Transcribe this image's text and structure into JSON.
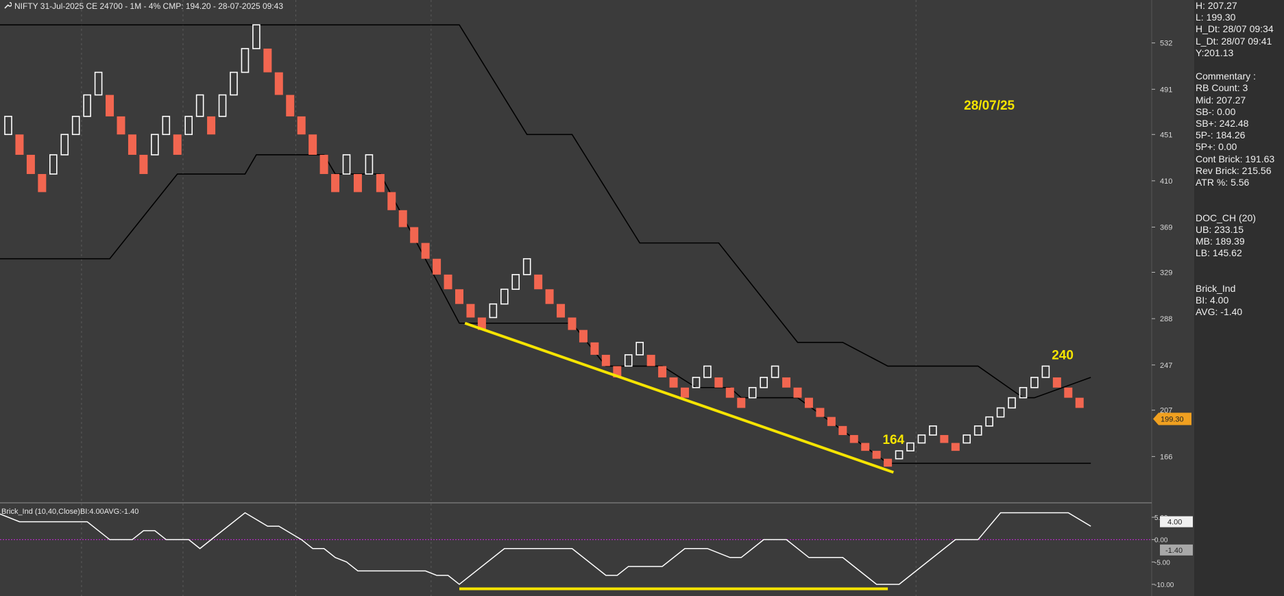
{
  "header": {
    "title": "NIFTY 31-Jul-2025 CE 24700 - 1M - 4% CMP: 194.20 - 28-07-2025 09:43"
  },
  "colors": {
    "background": "#3b3b3b",
    "up_brick": "#ffffff",
    "down_brick": "#f26650",
    "channel": "#000000",
    "annotation": "#f5e400",
    "indicator": "#ffffff",
    "zero_line": "#c02ad0",
    "price_tag": "#f0a020"
  },
  "side_panel": {
    "groups": [
      [
        "H: 207.27",
        "L: 199.30",
        "H_Dt: 28/07 09:34",
        "L_Dt: 28/07 09:41",
        "Y:201.13"
      ],
      [
        "Commentary :",
        "RB Count: 3",
        "Mid: 207.27",
        "SB-: 0.00",
        "SB+: 242.48",
        "5P-: 184.26",
        "5P+: 0.00",
        "Cont Brick: 191.63",
        "Rev Brick: 215.56",
        "ATR %: 5.56"
      ],
      [
        "DOC_CH (20)",
        "UB: 233.15",
        "MB: 189.39",
        "LB: 145.62"
      ],
      [
        "Brick_Ind",
        "BI: 4.00",
        "AVG: -1.40"
      ]
    ]
  },
  "chart_data": [
    {
      "type": "renko",
      "brick_box_percent": 4,
      "y_ticks": [
        532,
        491,
        451,
        410,
        369,
        329,
        288,
        247,
        207,
        166
      ],
      "ylim": [
        125,
        570
      ],
      "current_price_label": "199.30",
      "bricks": [
        {
          "dir": "up",
          "low": 451,
          "high": 467
        },
        {
          "dir": "down",
          "low": 433,
          "high": 451
        },
        {
          "dir": "down",
          "low": 416,
          "high": 433
        },
        {
          "dir": "down",
          "low": 400,
          "high": 416
        },
        {
          "dir": "up",
          "low": 416,
          "high": 433
        },
        {
          "dir": "up",
          "low": 433,
          "high": 451
        },
        {
          "dir": "up",
          "low": 451,
          "high": 467
        },
        {
          "dir": "up",
          "low": 467,
          "high": 486
        },
        {
          "dir": "up",
          "low": 486,
          "high": 506
        },
        {
          "dir": "down",
          "low": 467,
          "high": 486
        },
        {
          "dir": "down",
          "low": 451,
          "high": 467
        },
        {
          "dir": "down",
          "low": 433,
          "high": 451
        },
        {
          "dir": "down",
          "low": 416,
          "high": 433
        },
        {
          "dir": "up",
          "low": 433,
          "high": 451
        },
        {
          "dir": "up",
          "low": 451,
          "high": 467
        },
        {
          "dir": "down",
          "low": 433,
          "high": 451
        },
        {
          "dir": "up",
          "low": 451,
          "high": 467
        },
        {
          "dir": "up",
          "low": 467,
          "high": 486
        },
        {
          "dir": "down",
          "low": 451,
          "high": 467
        },
        {
          "dir": "up",
          "low": 467,
          "high": 486
        },
        {
          "dir": "up",
          "low": 486,
          "high": 506
        },
        {
          "dir": "up",
          "low": 506,
          "high": 527
        },
        {
          "dir": "up",
          "low": 527,
          "high": 548
        },
        {
          "dir": "down",
          "low": 506,
          "high": 527
        },
        {
          "dir": "down",
          "low": 486,
          "high": 506
        },
        {
          "dir": "down",
          "low": 467,
          "high": 486
        },
        {
          "dir": "down",
          "low": 451,
          "high": 467
        },
        {
          "dir": "down",
          "low": 433,
          "high": 451
        },
        {
          "dir": "down",
          "low": 416,
          "high": 433
        },
        {
          "dir": "down",
          "low": 400,
          "high": 416
        },
        {
          "dir": "up",
          "low": 416,
          "high": 433
        },
        {
          "dir": "down",
          "low": 400,
          "high": 416
        },
        {
          "dir": "up",
          "low": 416,
          "high": 433
        },
        {
          "dir": "down",
          "low": 400,
          "high": 416
        },
        {
          "dir": "down",
          "low": 384,
          "high": 400
        },
        {
          "dir": "down",
          "low": 369,
          "high": 384
        },
        {
          "dir": "down",
          "low": 355,
          "high": 369
        },
        {
          "dir": "down",
          "low": 341,
          "high": 355
        },
        {
          "dir": "down",
          "low": 327,
          "high": 341
        },
        {
          "dir": "down",
          "low": 314,
          "high": 327
        },
        {
          "dir": "down",
          "low": 301,
          "high": 314
        },
        {
          "dir": "down",
          "low": 289,
          "high": 301
        },
        {
          "dir": "down",
          "low": 278,
          "high": 289
        },
        {
          "dir": "up",
          "low": 289,
          "high": 301
        },
        {
          "dir": "up",
          "low": 301,
          "high": 314
        },
        {
          "dir": "up",
          "low": 314,
          "high": 327
        },
        {
          "dir": "up",
          "low": 327,
          "high": 341
        },
        {
          "dir": "down",
          "low": 314,
          "high": 327
        },
        {
          "dir": "down",
          "low": 301,
          "high": 314
        },
        {
          "dir": "down",
          "low": 289,
          "high": 301
        },
        {
          "dir": "down",
          "low": 278,
          "high": 289
        },
        {
          "dir": "down",
          "low": 267,
          "high": 278
        },
        {
          "dir": "down",
          "low": 256,
          "high": 267
        },
        {
          "dir": "down",
          "low": 246,
          "high": 256
        },
        {
          "dir": "down",
          "low": 236,
          "high": 246
        },
        {
          "dir": "up",
          "low": 246,
          "high": 256
        },
        {
          "dir": "up",
          "low": 256,
          "high": 267
        },
        {
          "dir": "down",
          "low": 246,
          "high": 256
        },
        {
          "dir": "down",
          "low": 236,
          "high": 246
        },
        {
          "dir": "down",
          "low": 227,
          "high": 236
        },
        {
          "dir": "down",
          "low": 218,
          "high": 227
        },
        {
          "dir": "up",
          "low": 227,
          "high": 236
        },
        {
          "dir": "up",
          "low": 236,
          "high": 246
        },
        {
          "dir": "down",
          "low": 227,
          "high": 236
        },
        {
          "dir": "down",
          "low": 218,
          "high": 227
        },
        {
          "dir": "down",
          "low": 209,
          "high": 218
        },
        {
          "dir": "up",
          "low": 218,
          "high": 227
        },
        {
          "dir": "up",
          "low": 227,
          "high": 236
        },
        {
          "dir": "up",
          "low": 236,
          "high": 246
        },
        {
          "dir": "down",
          "low": 227,
          "high": 236
        },
        {
          "dir": "down",
          "low": 218,
          "high": 227
        },
        {
          "dir": "down",
          "low": 209,
          "high": 218
        },
        {
          "dir": "down",
          "low": 201,
          "high": 209
        },
        {
          "dir": "down",
          "low": 193,
          "high": 201
        },
        {
          "dir": "down",
          "low": 185,
          "high": 193
        },
        {
          "dir": "down",
          "low": 178,
          "high": 185
        },
        {
          "dir": "down",
          "low": 171,
          "high": 178
        },
        {
          "dir": "down",
          "low": 164,
          "high": 171
        },
        {
          "dir": "down",
          "low": 157,
          "high": 164
        },
        {
          "dir": "up",
          "low": 164,
          "high": 171
        },
        {
          "dir": "up",
          "low": 171,
          "high": 178
        },
        {
          "dir": "up",
          "low": 178,
          "high": 185
        },
        {
          "dir": "up",
          "low": 185,
          "high": 193
        },
        {
          "dir": "down",
          "low": 178,
          "high": 185
        },
        {
          "dir": "down",
          "low": 171,
          "high": 178
        },
        {
          "dir": "up",
          "low": 178,
          "high": 185
        },
        {
          "dir": "up",
          "low": 185,
          "high": 193
        },
        {
          "dir": "up",
          "low": 193,
          "high": 201
        },
        {
          "dir": "up",
          "low": 201,
          "high": 209
        },
        {
          "dir": "up",
          "low": 209,
          "high": 218
        },
        {
          "dir": "up",
          "low": 218,
          "high": 227
        },
        {
          "dir": "up",
          "low": 227,
          "high": 236
        },
        {
          "dir": "up",
          "low": 236,
          "high": 246
        },
        {
          "dir": "down",
          "low": 227,
          "high": 236
        },
        {
          "dir": "down",
          "low": 218,
          "high": 227
        },
        {
          "dir": "down",
          "low": 209,
          "high": 218
        }
      ],
      "channel_upper": [
        [
          -1,
          548
        ],
        [
          20,
          548
        ],
        [
          21,
          548
        ],
        [
          40,
          548
        ],
        [
          46,
          451
        ],
        [
          50,
          451
        ],
        [
          56,
          355
        ],
        [
          63,
          355
        ],
        [
          70,
          267
        ],
        [
          74,
          267
        ],
        [
          78,
          246
        ],
        [
          86,
          246
        ],
        [
          90,
          218
        ],
        [
          91,
          218
        ],
        [
          96,
          236
        ]
      ],
      "channel_lower": [
        [
          -1,
          341
        ],
        [
          9,
          341
        ],
        [
          15,
          416
        ],
        [
          21,
          416
        ],
        [
          22,
          433
        ],
        [
          28,
          433
        ],
        [
          29,
          416
        ],
        [
          33,
          416
        ],
        [
          40,
          284
        ],
        [
          50,
          284
        ],
        [
          53,
          246
        ],
        [
          58,
          246
        ],
        [
          61,
          227
        ],
        [
          64,
          227
        ],
        [
          65,
          218
        ],
        [
          70,
          218
        ],
        [
          78,
          160
        ],
        [
          96,
          160
        ]
      ],
      "trendline": [
        [
          40.5,
          284
        ],
        [
          78.5,
          152
        ]
      ],
      "annotations": [
        {
          "text": "28/07/25",
          "x": 87,
          "y": 473
        },
        {
          "text": "164",
          "x": 78.5,
          "y": 177
        },
        {
          "text": "240",
          "x": 93.5,
          "y": 252
        }
      ]
    },
    {
      "type": "line",
      "title": "Brick_Ind (10,40,Close)BI:4.00AVG:-1.40",
      "y_ticks": [
        "5.00",
        "0.00",
        "-5.00",
        "-10.00"
      ],
      "ylim": [
        -12,
        7
      ],
      "series": [
        {
          "values": [
            [
              -1,
              6
            ],
            [
              1,
              4
            ],
            [
              7,
              4
            ],
            [
              9,
              0
            ],
            [
              11,
              0
            ],
            [
              12,
              2
            ],
            [
              13,
              2
            ],
            [
              14,
              0
            ],
            [
              16,
              0
            ],
            [
              17,
              -2
            ],
            [
              19,
              2
            ],
            [
              21,
              6
            ],
            [
              23,
              3
            ],
            [
              24,
              3
            ],
            [
              26,
              0
            ],
            [
              27,
              -2
            ],
            [
              28,
              -2
            ],
            [
              29,
              -4
            ],
            [
              30,
              -5
            ],
            [
              31,
              -7
            ],
            [
              37,
              -7
            ],
            [
              38,
              -8
            ],
            [
              39,
              -8
            ],
            [
              40,
              -10
            ],
            [
              44,
              -2
            ],
            [
              50,
              -2
            ],
            [
              53,
              -8
            ],
            [
              54,
              -8
            ],
            [
              55,
              -6
            ],
            [
              58,
              -6
            ],
            [
              60,
              -2
            ],
            [
              62,
              -2
            ],
            [
              64,
              -4
            ],
            [
              65,
              -4
            ],
            [
              66,
              -2
            ],
            [
              67,
              0
            ],
            [
              69,
              0
            ],
            [
              71,
              -4
            ],
            [
              74,
              -4
            ],
            [
              77,
              -10
            ],
            [
              79,
              -10
            ],
            [
              84,
              0
            ],
            [
              86,
              0
            ],
            [
              88,
              6
            ],
            [
              94,
              6
            ],
            [
              96,
              3
            ]
          ]
        }
      ],
      "last_value_labels": [
        "4.00",
        "-1.40"
      ],
      "support_line": [
        [
          40,
          -11
        ],
        [
          78,
          -11
        ]
      ]
    }
  ]
}
